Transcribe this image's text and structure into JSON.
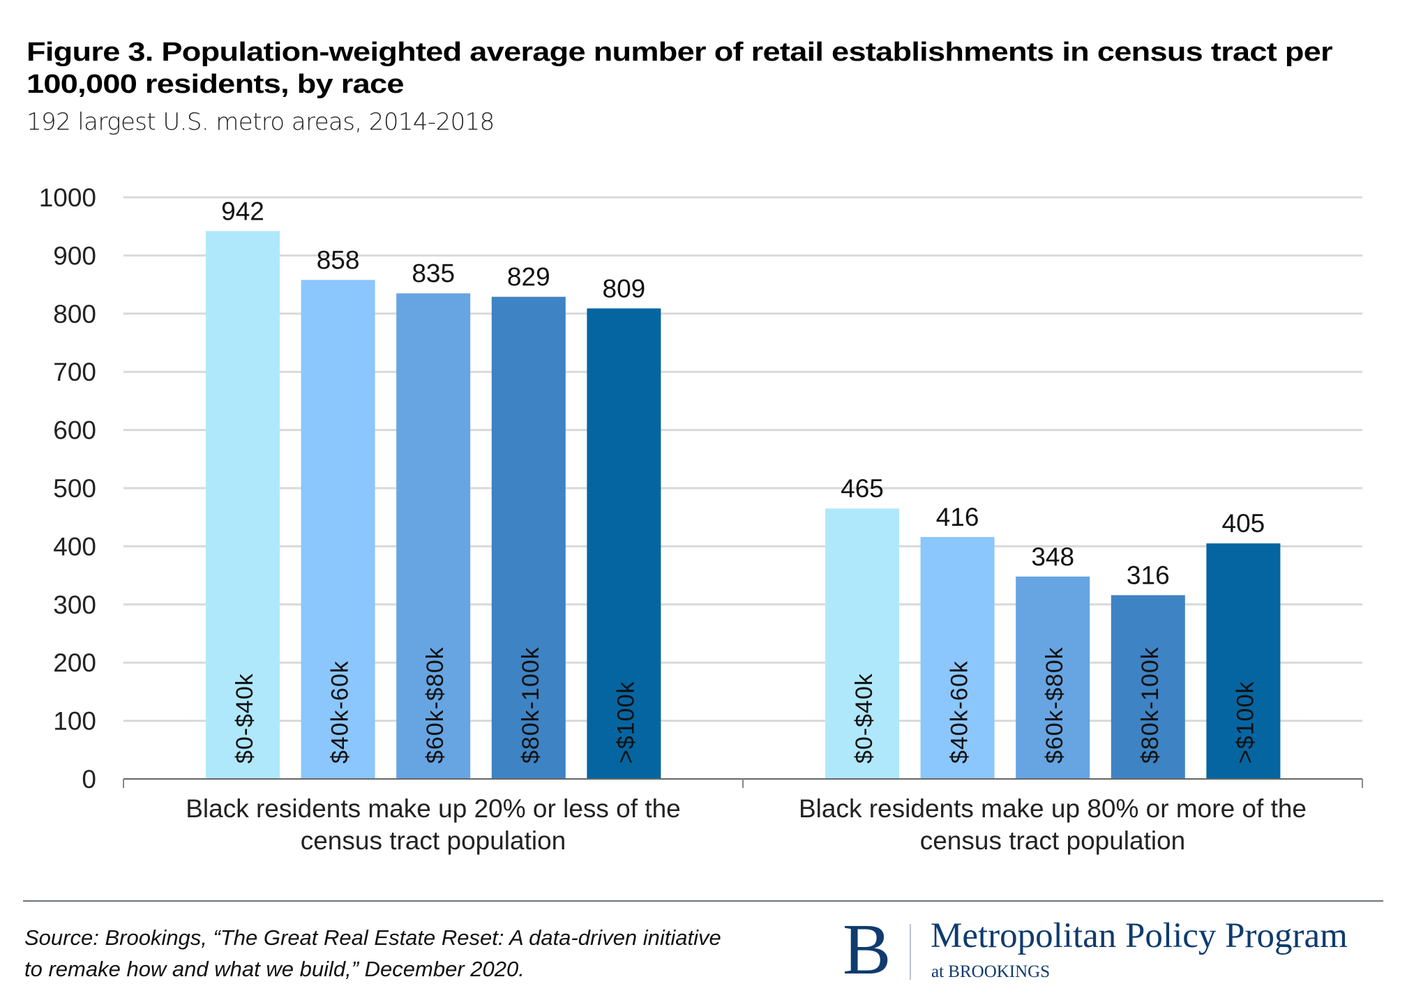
{
  "header": {
    "title_line1": "Figure 3. Population-weighted average number of retail establishments in census tract per",
    "title_line2": "100,000 residents, by race",
    "subtitle": "192 largest U.S. metro areas, 2014-2018"
  },
  "chart_data": {
    "type": "bar",
    "title": "Figure 3. Population-weighted average number of retail establishments in census tract per 100,000 residents, by race",
    "subtitle": "192 largest U.S. metro areas, 2014-2018",
    "xlabel": "",
    "ylabel": "",
    "ylim": [
      0,
      1000
    ],
    "yticks": [
      0,
      100,
      200,
      300,
      400,
      500,
      600,
      700,
      800,
      900,
      1000
    ],
    "grid": true,
    "legend": "none (series labels written inside bars)",
    "categories": [
      [
        "Black residents make up 20% or less of the",
        "census tract population"
      ],
      [
        "Black residents make up 80% or more of the",
        "census tract population"
      ]
    ],
    "series": [
      {
        "name": "$0-$40k",
        "color": "#b0e8fb",
        "values": [
          942,
          465
        ]
      },
      {
        "name": "$40k-60k",
        "color": "#8bc6fc",
        "values": [
          858,
          416
        ]
      },
      {
        "name": "$60k-$80k",
        "color": "#66a5e2",
        "values": [
          835,
          348
        ]
      },
      {
        "name": "$80k-100k",
        "color": "#3e83c3",
        "values": [
          829,
          316
        ]
      },
      {
        "name": ">$100k",
        "color": "#0565a1",
        "values": [
          809,
          405
        ]
      }
    ],
    "data_labels": true
  },
  "footer": {
    "source_line1": "Source: Brookings, “The Great Real Estate Reset: A data-driven initiative",
    "source_line2": "to remake how and what we build,” December 2020.",
    "logo_letter": "B",
    "logo_name": "Metropolitan Policy Program",
    "logo_sub": "at BROOKINGS",
    "brand_color": "#0f3b6e"
  }
}
